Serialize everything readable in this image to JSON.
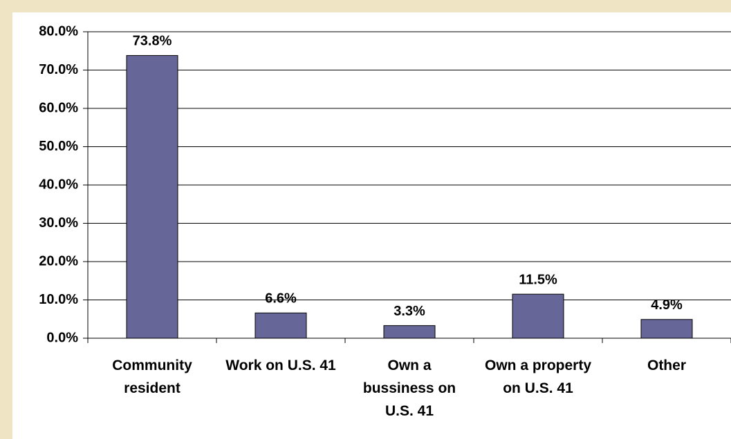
{
  "chart_data": {
    "type": "bar",
    "categories": [
      "Community resident",
      "Work on U.S. 41",
      "Own a bussiness on U.S. 41",
      "Own a property on U.S. 41",
      "Other"
    ],
    "values": [
      73.8,
      6.6,
      3.3,
      11.5,
      4.9
    ],
    "value_labels": [
      "73.8%",
      "6.6%",
      "3.3%",
      "11.5%",
      "4.9%"
    ],
    "color": "#666699",
    "ylim": [
      0,
      80
    ],
    "yticks": [
      {
        "value": 0,
        "label": "0.0%"
      },
      {
        "value": 10,
        "label": "10.0%"
      },
      {
        "value": 20,
        "label": "20.0%"
      },
      {
        "value": 30,
        "label": "30.0%"
      },
      {
        "value": 40,
        "label": "40.0%"
      },
      {
        "value": 50,
        "label": "50.0%"
      },
      {
        "value": 60,
        "label": "60.0%"
      },
      {
        "value": 70,
        "label": "70.0%"
      },
      {
        "value": 80,
        "label": "80.0%"
      }
    ],
    "grid": true
  }
}
